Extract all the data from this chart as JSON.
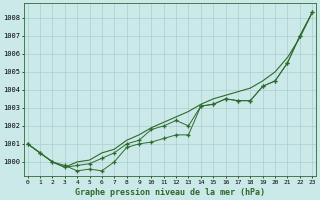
{
  "x": [
    0,
    1,
    2,
    3,
    4,
    5,
    6,
    7,
    8,
    9,
    10,
    11,
    12,
    13,
    14,
    15,
    16,
    17,
    18,
    19,
    20,
    21,
    22,
    23
  ],
  "y_zigzag": [
    1001.0,
    1000.5,
    1000.0,
    999.8,
    999.5,
    999.6,
    999.5,
    1000.0,
    1000.8,
    1001.0,
    1001.1,
    1001.3,
    1001.5,
    1001.5,
    1003.1,
    1003.2,
    1003.5,
    1003.4,
    1003.4,
    1004.2,
    1004.5,
    1005.5,
    1007.0,
    1008.3
  ],
  "y_smooth": [
    1001.0,
    1000.5,
    1000.0,
    999.7,
    999.8,
    999.9,
    1000.2,
    1000.5,
    1001.0,
    1001.2,
    1001.8,
    1002.0,
    1002.3,
    1002.0,
    1003.1,
    1003.2,
    1003.5,
    1003.4,
    1003.4,
    1004.2,
    1004.5,
    1005.5,
    1007.0,
    1008.3
  ],
  "y_line": [
    1001.0,
    1000.5,
    1000.0,
    999.7,
    1000.0,
    1000.1,
    1000.5,
    1000.7,
    1001.2,
    1001.5,
    1001.9,
    1002.2,
    1002.5,
    1002.8,
    1003.2,
    1003.5,
    1003.7,
    1003.9,
    1004.1,
    1004.5,
    1005.0,
    1005.8,
    1006.9,
    1008.3
  ],
  "line_color": "#2d6a2d",
  "bg_color": "#cce9e9",
  "grid_color": "#aacfcf",
  "ylabel_vals": [
    1000,
    1001,
    1002,
    1003,
    1004,
    1005,
    1006,
    1007,
    1008
  ],
  "ylim": [
    999.2,
    1008.8
  ],
  "xlim": [
    -0.3,
    23.3
  ],
  "xlabel": "Graphe pression niveau de la mer (hPa)"
}
